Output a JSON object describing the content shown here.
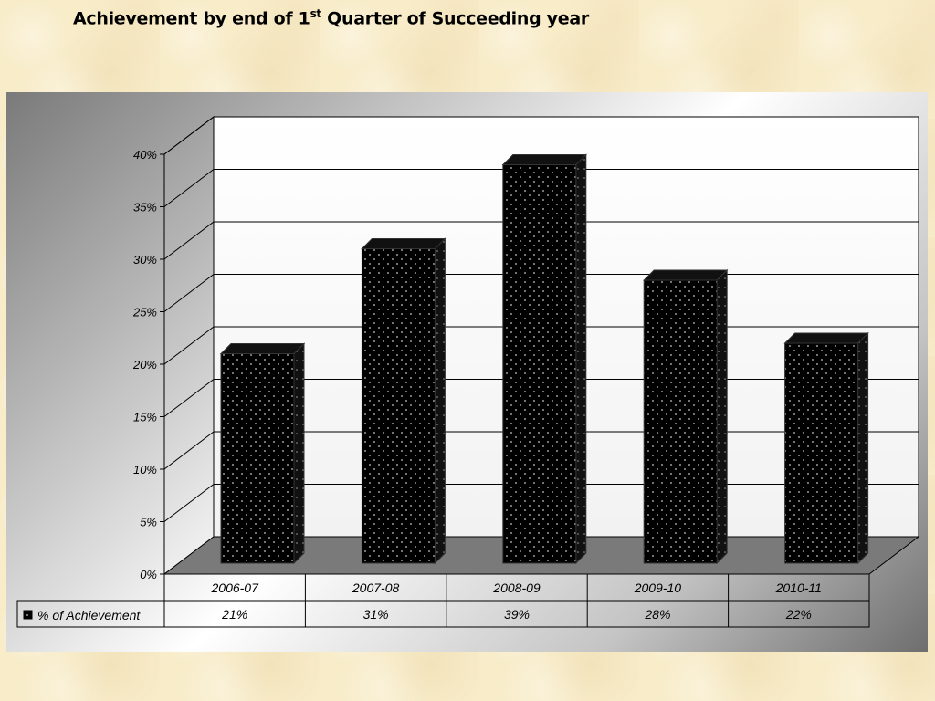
{
  "title": {
    "prefix": "Achievement by end of 1",
    "superscript": "st",
    "suffix": " Quarter of Succeeding year"
  },
  "chart_data": {
    "type": "bar",
    "categories": [
      "2006-07",
      "2007-08",
      "2008-09",
      "2009-10",
      "2010-11"
    ],
    "series": [
      {
        "name": "% of Achievement",
        "values": [
          21,
          31,
          39,
          28,
          22
        ]
      }
    ],
    "data_labels": [
      "21%",
      "31%",
      "39%",
      "28%",
      "22%"
    ],
    "y_tick_labels": [
      "0%",
      "5%",
      "10%",
      "15%",
      "20%",
      "25%",
      "30%",
      "35%",
      "40%"
    ],
    "ylim": [
      0,
      40
    ],
    "y_unit": "%",
    "grid": true,
    "legend": "data-table-left",
    "bar_color": "#000000",
    "bar_pattern": "dotted",
    "floor_color": "#7a7a7a"
  }
}
